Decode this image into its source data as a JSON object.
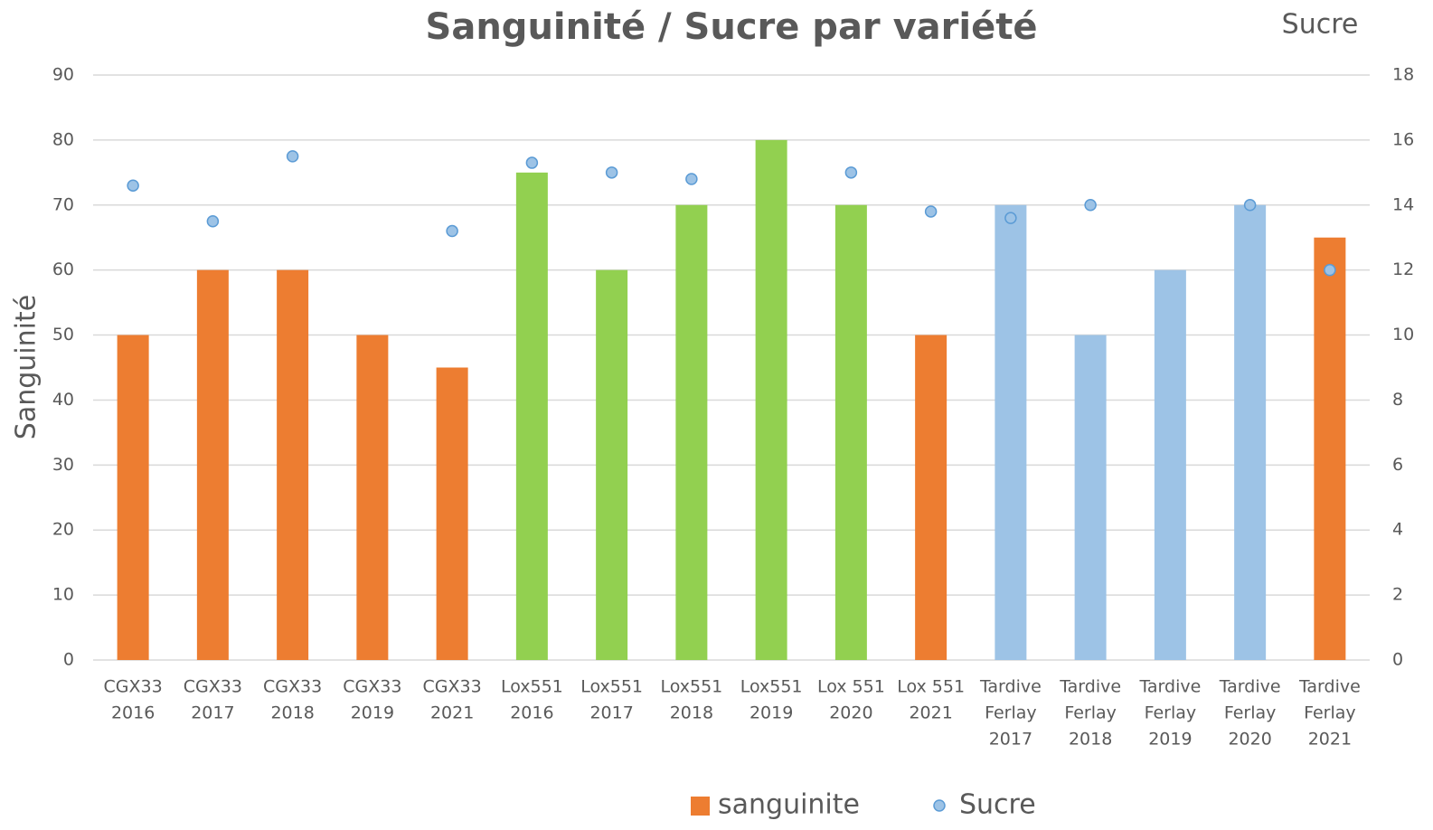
{
  "chart_data": {
    "type": "bar",
    "title": "Sanguinité / Sucre par variété",
    "y_label": "Sanguinité",
    "y2_label": "Sucre",
    "categories": [
      [
        "CGX33",
        "2016"
      ],
      [
        "CGX33",
        "2017"
      ],
      [
        "CGX33",
        "2018"
      ],
      [
        "CGX33",
        "2019"
      ],
      [
        "CGX33",
        "2021"
      ],
      [
        "Lox551",
        "2016"
      ],
      [
        "Lox551",
        "2017"
      ],
      [
        "Lox551",
        "2018"
      ],
      [
        "Lox551",
        "2019"
      ],
      [
        "Lox 551",
        "2020"
      ],
      [
        "Lox 551",
        "2021"
      ],
      [
        "Tardive",
        "Ferlay",
        "2017"
      ],
      [
        "Tardive",
        "Ferlay",
        "2018"
      ],
      [
        "Tardive",
        "Ferlay",
        "2019"
      ],
      [
        "Tardive",
        "Ferlay",
        "2020"
      ],
      [
        "Tardive",
        "Ferlay",
        "2021"
      ]
    ],
    "series": [
      {
        "name": "sanguinite",
        "type": "bar",
        "color": "#ed7d31",
        "colors": [
          "#ed7d31",
          "#ed7d31",
          "#ed7d31",
          "#ed7d31",
          "#ed7d31",
          "#92d050",
          "#92d050",
          "#92d050",
          "#92d050",
          "#92d050",
          "#ed7d31",
          "#9dc3e6",
          "#9dc3e6",
          "#9dc3e6",
          "#9dc3e6",
          "#ed7d31"
        ],
        "values": [
          50,
          60,
          60,
          50,
          45,
          75,
          60,
          70,
          80,
          70,
          50,
          70,
          50,
          60,
          70,
          65
        ]
      },
      {
        "name": "Sucre",
        "type": "scatter",
        "axis": "y2",
        "color": "#9dc3e6",
        "edge_color": "#5b9bd5",
        "values": [
          14.6,
          13.5,
          15.5,
          null,
          13.2,
          15.3,
          15.0,
          14.8,
          null,
          15.0,
          13.8,
          13.6,
          14.0,
          null,
          14.0,
          12.0
        ]
      }
    ],
    "ylim": [
      0,
      90
    ],
    "yticks": [
      0,
      10,
      20,
      30,
      40,
      50,
      60,
      70,
      80,
      90
    ],
    "y2lim": [
      0,
      18
    ],
    "y2ticks": [
      0,
      2,
      4,
      6,
      8,
      10,
      12,
      14,
      16,
      18
    ],
    "grid": true,
    "legend": "bottom"
  }
}
